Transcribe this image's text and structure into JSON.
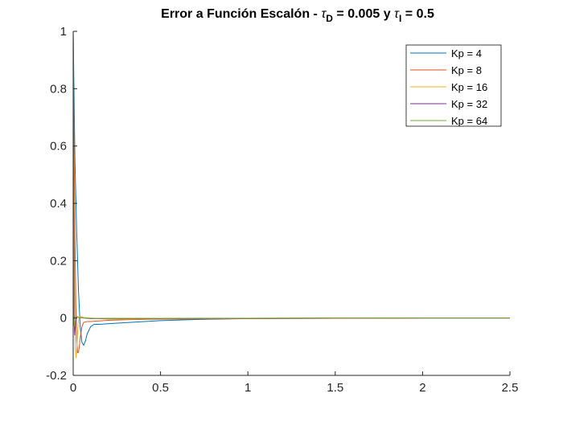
{
  "chart_data": {
    "type": "line",
    "title": {
      "prefix": "Error a Función Escalón - ",
      "tau_symbol": "τ",
      "tau_d_sub": "D",
      "middle": " = 0.005 y ",
      "tau_i_sub": "I",
      "suffix": " = 0.5"
    },
    "xlabel": "",
    "ylabel": "",
    "xlim": [
      0,
      2.5
    ],
    "ylim": [
      -0.2,
      1
    ],
    "xticks": [
      0,
      0.5,
      1,
      1.5,
      2,
      2.5
    ],
    "xtick_labels": [
      "0",
      "0.5",
      "1",
      "1.5",
      "2",
      "2.5"
    ],
    "yticks": [
      -0.2,
      0,
      0.2,
      0.4,
      0.6,
      0.8,
      1
    ],
    "ytick_labels": [
      "-0.2",
      "0",
      "0.2",
      "0.4",
      "0.6",
      "0.8",
      "1"
    ],
    "grid": false,
    "legend_position": "top-right",
    "series": [
      {
        "name": "Kp = 4",
        "color": "#0072BD",
        "x": [
          0,
          0.01,
          0.02,
          0.03,
          0.04,
          0.05,
          0.06,
          0.07,
          0.08,
          0.1,
          0.12,
          0.15,
          0.2,
          0.3,
          0.5,
          0.7,
          1.0,
          1.5,
          2.0,
          2.5
        ],
        "y": [
          1,
          0.55,
          0.3,
          0.1,
          -0.03,
          -0.085,
          -0.095,
          -0.08,
          -0.055,
          -0.03,
          -0.022,
          -0.022,
          -0.02,
          -0.016,
          -0.009,
          -0.005,
          -0.002,
          -0.001,
          0,
          0
        ]
      },
      {
        "name": "Kp = 8",
        "color": "#D95319",
        "x": [
          0,
          0.005,
          0.01,
          0.015,
          0.02,
          0.025,
          0.03,
          0.035,
          0.04,
          0.05,
          0.06,
          0.08,
          0.1,
          0.15,
          0.2,
          0.3,
          0.5,
          1.0,
          1.5,
          2.0,
          2.5
        ],
        "y": [
          1,
          0.6,
          0.3,
          0.05,
          -0.08,
          -0.12,
          -0.12,
          -0.1,
          -0.07,
          -0.03,
          -0.015,
          -0.012,
          -0.012,
          -0.01,
          -0.008,
          -0.006,
          -0.004,
          -0.002,
          -0.001,
          0,
          0
        ]
      },
      {
        "name": "Kp = 16",
        "color": "#EDB120",
        "x": [
          0,
          0.004,
          0.008,
          0.012,
          0.016,
          0.02,
          0.025,
          0.03,
          0.035,
          0.04,
          0.05,
          0.06,
          0.08,
          0.1,
          0.2,
          0.3,
          0.5,
          1.0,
          1.5,
          2.0,
          2.5
        ],
        "y": [
          1,
          0.5,
          0.1,
          -0.1,
          -0.14,
          -0.11,
          -0.05,
          -0.01,
          0.005,
          0.006,
          0.004,
          0.002,
          0.001,
          0,
          -0.004,
          -0.004,
          -0.003,
          -0.001,
          0,
          0,
          0
        ]
      },
      {
        "name": "Kp = 32",
        "color": "#7E2F8E",
        "x": [
          0,
          0.003,
          0.006,
          0.009,
          0.012,
          0.015,
          0.02,
          0.025,
          0.03,
          0.04,
          0.06,
          0.1,
          0.2,
          0.5,
          1.0,
          1.5,
          2.0,
          2.5
        ],
        "y": [
          1,
          0.4,
          -0.02,
          -0.06,
          -0.035,
          -0.01,
          0.005,
          0.004,
          0.002,
          0.001,
          0,
          -0.002,
          -0.002,
          -0.002,
          -0.001,
          0,
          0,
          0
        ]
      },
      {
        "name": "Kp = 64",
        "color": "#77AC30",
        "x": [
          0,
          0.002,
          0.004,
          0.006,
          0.008,
          0.01,
          0.015,
          0.02,
          0.03,
          0.05,
          0.1,
          0.2,
          0.5,
          1.0,
          1.5,
          2.0,
          2.5
        ],
        "y": [
          1,
          0.35,
          -0.02,
          -0.03,
          -0.01,
          0.004,
          0.006,
          0.004,
          0.002,
          0.001,
          -0.001,
          -0.001,
          -0.001,
          -0.0005,
          0,
          0,
          0
        ]
      }
    ]
  }
}
